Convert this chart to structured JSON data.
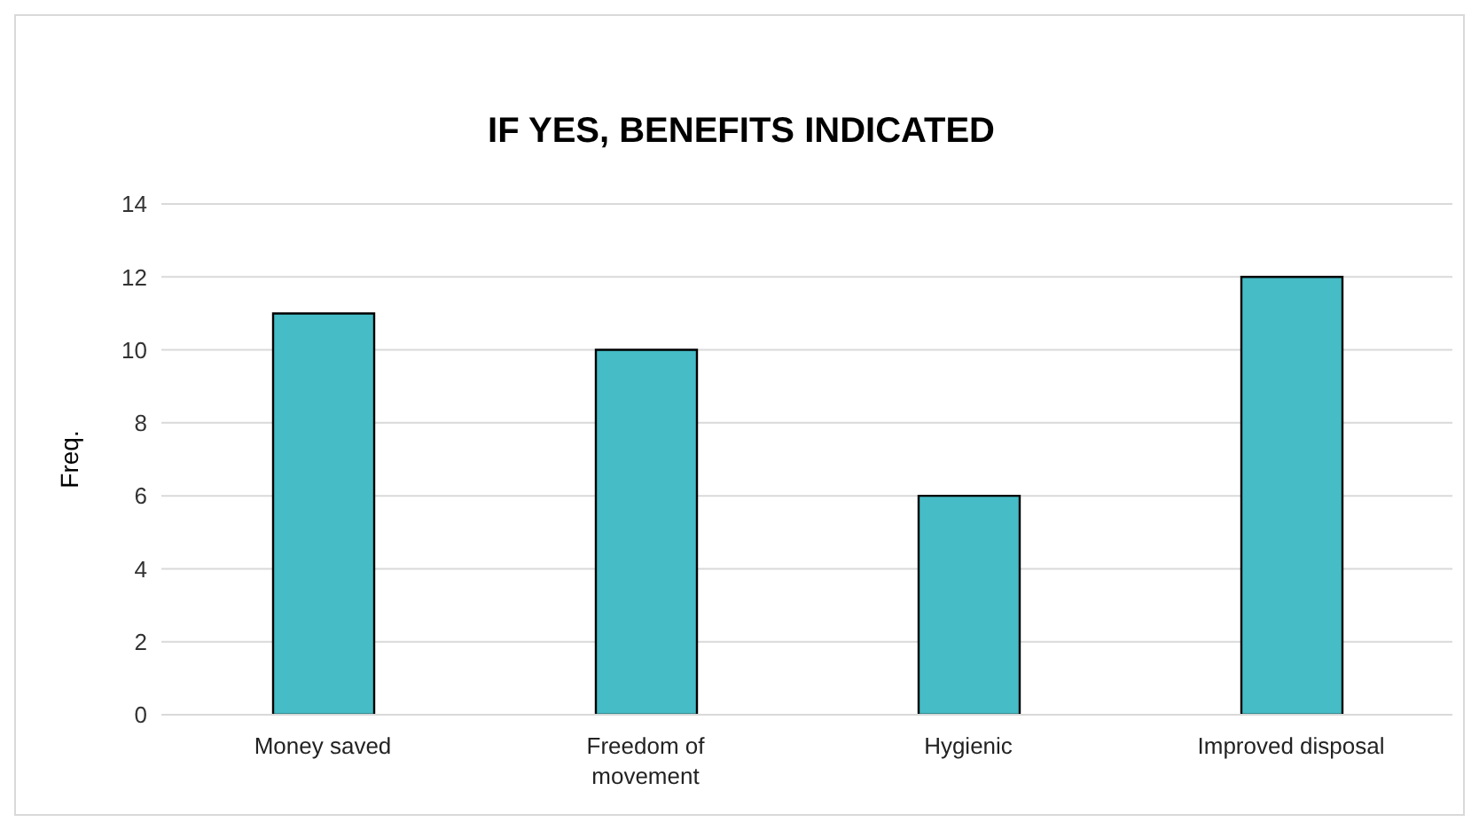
{
  "chart_data": {
    "type": "bar",
    "title": "IF YES, BENEFITS INDICATED",
    "ylabel": "Freq.",
    "categories": [
      "Money saved",
      "Freedom of movement",
      "Hygienic",
      "Improved disposal"
    ],
    "values": [
      11,
      10,
      6,
      12
    ],
    "color": "#45bcc6",
    "ylim": [
      0,
      14
    ],
    "yticks": [
      0,
      2,
      4,
      6,
      8,
      10,
      12,
      14
    ],
    "grid": "y",
    "legend": false
  }
}
